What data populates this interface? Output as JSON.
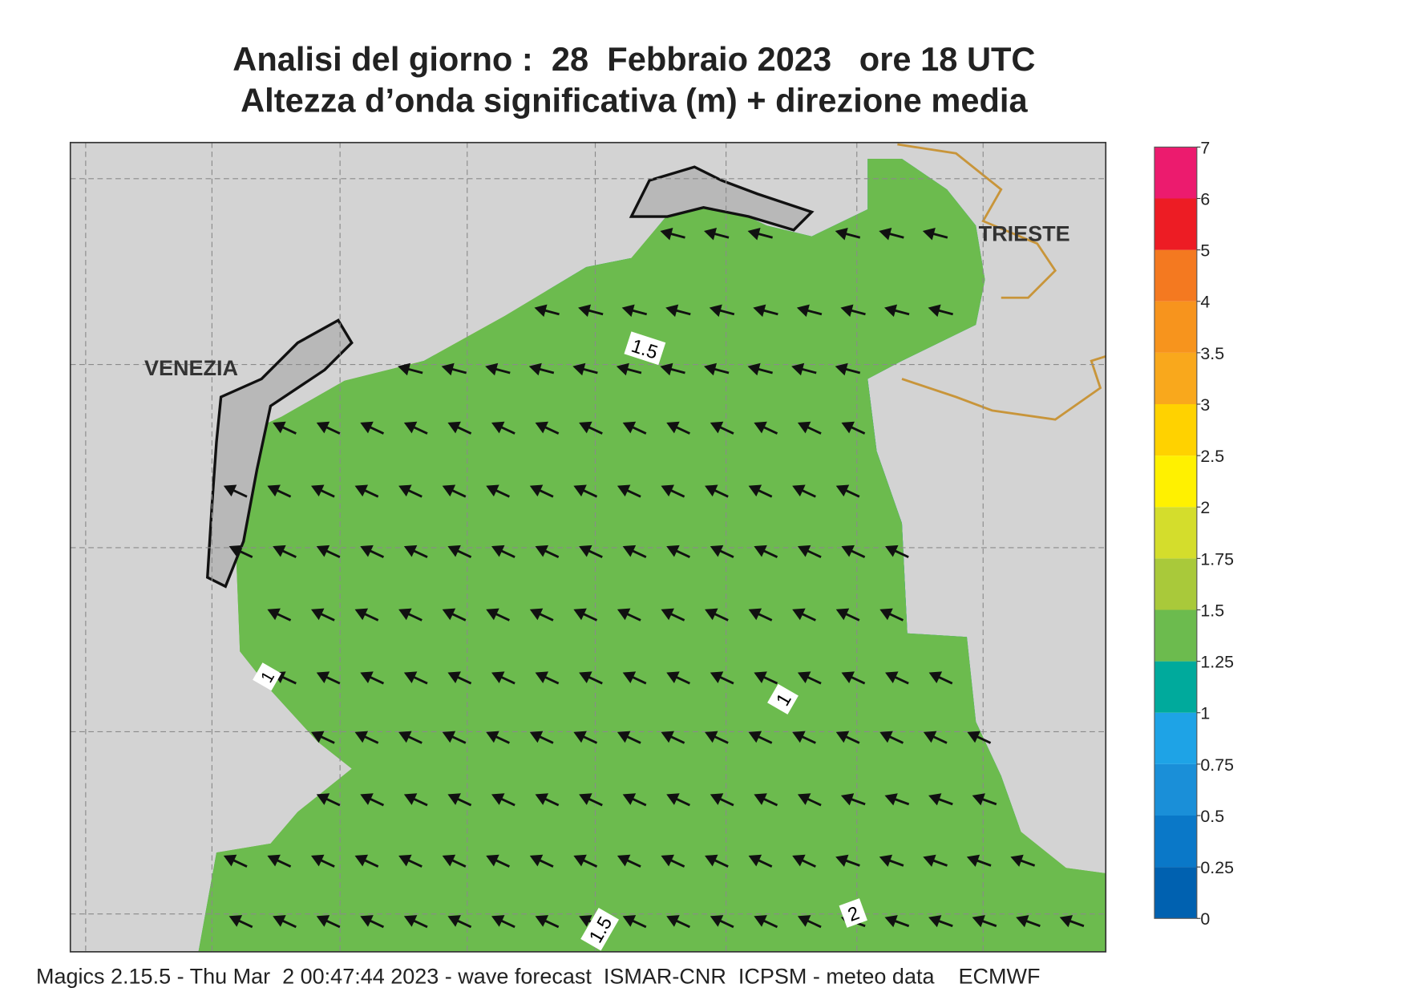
{
  "header": {
    "title": "Analisi del giorno :  28  Febbraio 2023   ore 18 UTC",
    "subtitle": "Altezza d’onda significativa (m) + direzione media"
  },
  "map": {
    "places": [
      "VENEZIA",
      "TRIESTE"
    ],
    "contour_labels": [
      "1.5",
      "1",
      "1.5",
      "2",
      "1"
    ]
  },
  "colorbar": {
    "levels": [
      0,
      0.25,
      0.5,
      0.75,
      1,
      1.25,
      1.5,
      1.75,
      2,
      2.5,
      3,
      3.5,
      4,
      5,
      6,
      7
    ],
    "colors": [
      "#0061b0",
      "#0a78c8",
      "#1a8fd8",
      "#1ea3e6",
      "#00aa9c",
      "#6cbb4e",
      "#a9c93a",
      "#d4dd2c",
      "#fff100",
      "#ffd200",
      "#f9a81c",
      "#f7941d",
      "#f47920",
      "#ed1c24",
      "#ec1b6e"
    ]
  },
  "footer": "Magics 2.15.5 - Thu Mar  2 00:47:44 2023 - wave forecast  ISMAR-CNR  ICPSM - meteo data    ECMWF"
}
